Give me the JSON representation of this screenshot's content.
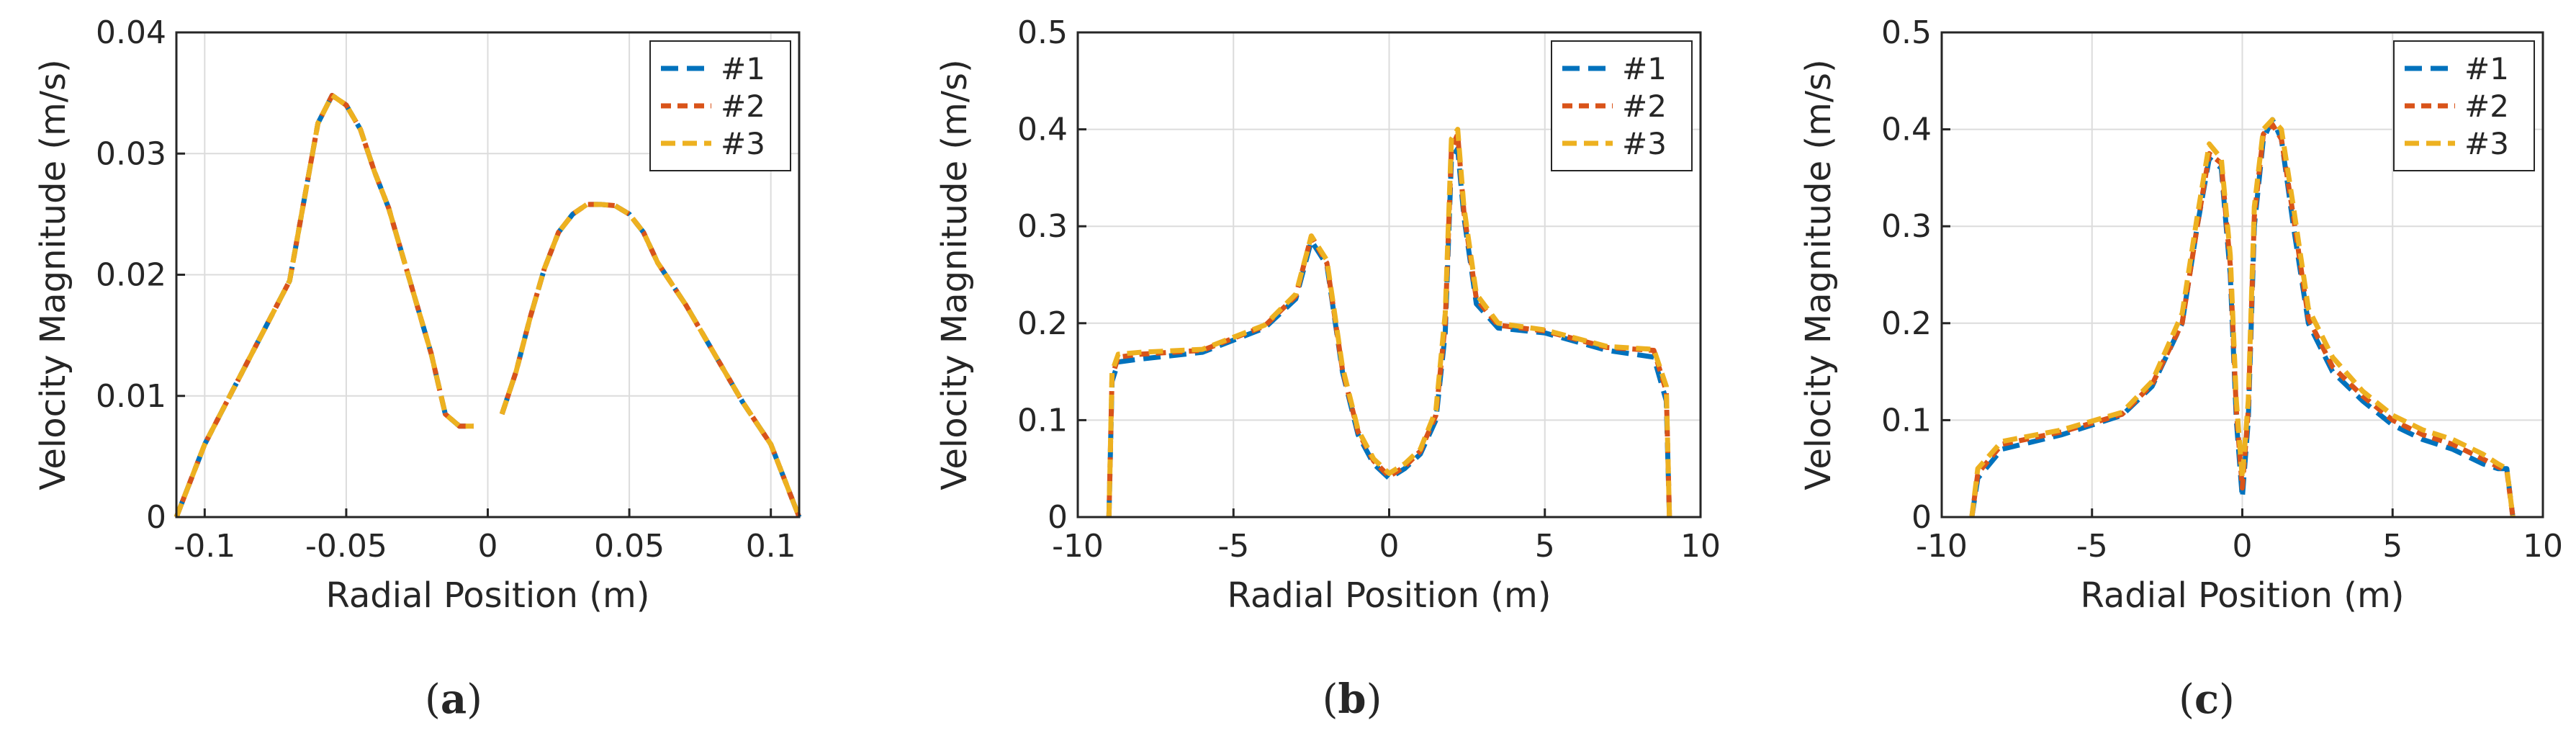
{
  "colors": {
    "series1": "#0072BD",
    "series2": "#D95319",
    "series3": "#EDB120",
    "grid": "#dcdcdc",
    "axis": "#262626"
  },
  "chart_data": [
    {
      "type": "line",
      "panel_label": "a",
      "xlabel": "Radial Position (m)",
      "ylabel": "Velocity Magnitude (m/s)",
      "xlim": [
        -0.11,
        0.11
      ],
      "ylim": [
        0,
        0.04
      ],
      "xticks": [
        -0.1,
        -0.05,
        0,
        0.05,
        0.1
      ],
      "xtick_labels": [
        "-0.1",
        "-0.05",
        "0",
        "0.05",
        "0.1"
      ],
      "yticks": [
        0,
        0.01,
        0.02,
        0.03,
        0.04
      ],
      "ytick_labels": [
        "0",
        "0.01",
        "0.02",
        "0.03",
        "0.04"
      ],
      "grid": true,
      "legend_position": "top-right",
      "series": [
        {
          "name": "#1",
          "x": [
            -0.11,
            -0.1,
            -0.09,
            -0.08,
            -0.07,
            -0.065,
            -0.06,
            -0.055,
            -0.05,
            -0.045,
            -0.04,
            -0.035,
            -0.03,
            -0.025,
            -0.02,
            -0.015,
            -0.01,
            -0.005,
            null,
            0.005,
            0.01,
            0.015,
            0.02,
            0.025,
            0.03,
            0.035,
            0.04,
            0.045,
            0.05,
            0.055,
            0.06,
            0.07,
            0.08,
            0.09,
            0.1,
            0.11
          ],
          "y": [
            0,
            0.006,
            0.0105,
            0.015,
            0.0195,
            0.026,
            0.0325,
            0.0348,
            0.034,
            0.032,
            0.0285,
            0.0255,
            0.0215,
            0.0175,
            0.0135,
            0.0085,
            0.0075,
            0.0075,
            null,
            0.0085,
            0.012,
            0.0165,
            0.0205,
            0.0235,
            0.025,
            0.0258,
            0.0258,
            0.0257,
            0.025,
            0.0235,
            0.021,
            0.0175,
            0.0135,
            0.0095,
            0.006,
            0
          ]
        },
        {
          "name": "#2",
          "x": [
            -0.11,
            -0.1,
            -0.09,
            -0.08,
            -0.07,
            -0.065,
            -0.06,
            -0.055,
            -0.05,
            -0.045,
            -0.04,
            -0.035,
            -0.03,
            -0.025,
            -0.02,
            -0.015,
            -0.01,
            -0.005,
            null,
            0.005,
            0.01,
            0.015,
            0.02,
            0.025,
            0.03,
            0.035,
            0.04,
            0.045,
            0.05,
            0.055,
            0.06,
            0.07,
            0.08,
            0.09,
            0.1,
            0.11
          ],
          "y": [
            0,
            0.006,
            0.0105,
            0.015,
            0.0195,
            0.026,
            0.0325,
            0.0348,
            0.034,
            0.032,
            0.0285,
            0.0255,
            0.0215,
            0.0175,
            0.0135,
            0.0085,
            0.0075,
            0.0075,
            null,
            0.0085,
            0.012,
            0.0165,
            0.0205,
            0.0235,
            0.025,
            0.0258,
            0.0258,
            0.0257,
            0.025,
            0.0235,
            0.021,
            0.0175,
            0.0135,
            0.0095,
            0.006,
            0
          ]
        },
        {
          "name": "#3",
          "x": [
            -0.11,
            -0.1,
            -0.09,
            -0.08,
            -0.07,
            -0.065,
            -0.06,
            -0.055,
            -0.05,
            -0.045,
            -0.04,
            -0.035,
            -0.03,
            -0.025,
            -0.02,
            -0.015,
            -0.01,
            -0.005,
            null,
            0.005,
            0.01,
            0.015,
            0.02,
            0.025,
            0.03,
            0.035,
            0.04,
            0.045,
            0.05,
            0.055,
            0.06,
            0.07,
            0.08,
            0.09,
            0.1,
            0.11
          ],
          "y": [
            0,
            0.006,
            0.0105,
            0.015,
            0.0195,
            0.026,
            0.0325,
            0.0348,
            0.034,
            0.032,
            0.0285,
            0.0255,
            0.0215,
            0.0175,
            0.0135,
            0.0085,
            0.0075,
            0.0075,
            null,
            0.0085,
            0.012,
            0.0165,
            0.0205,
            0.0235,
            0.025,
            0.0258,
            0.0258,
            0.0257,
            0.025,
            0.0235,
            0.021,
            0.0175,
            0.0135,
            0.0095,
            0.006,
            0
          ]
        }
      ]
    },
    {
      "type": "line",
      "panel_label": "b",
      "xlabel": "Radial Position (m)",
      "ylabel": "Velocity Magnitude (m/s)",
      "xlim": [
        -10,
        10
      ],
      "ylim": [
        0,
        0.5
      ],
      "xticks": [
        -10,
        -5,
        0,
        5,
        10
      ],
      "xtick_labels": [
        "-10",
        "-5",
        "0",
        "5",
        "10"
      ],
      "yticks": [
        0,
        0.1,
        0.2,
        0.3,
        0.4,
        0.5
      ],
      "ytick_labels": [
        "0",
        "0.1",
        "0.2",
        "0.3",
        "0.4",
        "0.5"
      ],
      "grid": true,
      "legend_position": "top-right",
      "series": [
        {
          "name": "#1",
          "x": [
            -9,
            -8.9,
            -8.7,
            -8,
            -6,
            -4,
            -3,
            -2.5,
            -2,
            -1.5,
            -1,
            -0.5,
            0,
            0.5,
            1,
            1.5,
            1.8,
            2,
            2.2,
            2.4,
            2.8,
            3.5,
            5,
            7,
            8.5,
            8.9,
            9
          ],
          "y": [
            0,
            0.14,
            0.16,
            0.163,
            0.17,
            0.195,
            0.225,
            0.285,
            0.26,
            0.15,
            0.085,
            0.055,
            0.04,
            0.05,
            0.065,
            0.1,
            0.19,
            0.37,
            0.38,
            0.31,
            0.22,
            0.195,
            0.19,
            0.172,
            0.165,
            0.12,
            0
          ]
        },
        {
          "name": "#2",
          "x": [
            -9,
            -8.9,
            -8.7,
            -8,
            -6,
            -4,
            -3,
            -2.5,
            -2,
            -1.5,
            -1,
            -0.5,
            0,
            0.5,
            1,
            1.5,
            1.8,
            2,
            2.2,
            2.4,
            2.8,
            3.5,
            5,
            7,
            8.5,
            8.9,
            9
          ],
          "y": [
            0,
            0.145,
            0.165,
            0.168,
            0.172,
            0.197,
            0.228,
            0.29,
            0.262,
            0.152,
            0.088,
            0.058,
            0.042,
            0.052,
            0.068,
            0.105,
            0.2,
            0.38,
            0.395,
            0.315,
            0.225,
            0.198,
            0.192,
            0.175,
            0.172,
            0.13,
            0
          ]
        },
        {
          "name": "#3",
          "x": [
            -9,
            -8.9,
            -8.7,
            -8,
            -6,
            -4,
            -3,
            -2.5,
            -2,
            -1.5,
            -1,
            -0.5,
            0,
            0.5,
            1,
            1.5,
            1.8,
            2,
            2.2,
            2.4,
            2.8,
            3.5,
            5,
            7,
            8.5,
            8.9,
            9
          ],
          "y": [
            0,
            0.15,
            0.168,
            0.17,
            0.173,
            0.198,
            0.23,
            0.29,
            0.265,
            0.155,
            0.09,
            0.06,
            0.045,
            0.055,
            0.07,
            0.11,
            0.21,
            0.39,
            0.4,
            0.32,
            0.23,
            0.2,
            0.193,
            0.176,
            0.173,
            0.135,
            0
          ]
        }
      ]
    },
    {
      "type": "line",
      "panel_label": "c",
      "xlabel": "Radial Position (m)",
      "ylabel": "Velocity Magnitude (m/s)",
      "xlim": [
        -10,
        10
      ],
      "ylim": [
        0,
        0.5
      ],
      "xticks": [
        -10,
        -5,
        0,
        5,
        10
      ],
      "xtick_labels": [
        "-10",
        "-5",
        "0",
        "5",
        "10"
      ],
      "yticks": [
        0,
        0.1,
        0.2,
        0.3,
        0.4,
        0.5
      ],
      "ytick_labels": [
        "0",
        "0.1",
        "0.2",
        "0.3",
        "0.4",
        "0.5"
      ],
      "grid": true,
      "legend_position": "top-right",
      "series": [
        {
          "name": "#1",
          "x": [
            -9,
            -8.8,
            -8,
            -6,
            -4,
            -3,
            -2,
            -1.5,
            -1.1,
            -0.7,
            -0.4,
            -0.2,
            0,
            0.2,
            0.4,
            0.7,
            1,
            1.3,
            1.7,
            2.2,
            3,
            4,
            5,
            6,
            7,
            8,
            8.5,
            8.8,
            9
          ],
          "y": [
            0,
            0.04,
            0.07,
            0.085,
            0.105,
            0.135,
            0.2,
            0.3,
            0.37,
            0.36,
            0.25,
            0.1,
            0.02,
            0.1,
            0.3,
            0.39,
            0.41,
            0.39,
            0.3,
            0.2,
            0.15,
            0.12,
            0.095,
            0.08,
            0.07,
            0.055,
            0.05,
            0.05,
            0
          ]
        },
        {
          "name": "#2",
          "x": [
            -9,
            -8.8,
            -8,
            -6,
            -4,
            -3,
            -2,
            -1.5,
            -1.1,
            -0.7,
            -0.4,
            -0.2,
            0,
            0.2,
            0.4,
            0.7,
            1,
            1.3,
            1.7,
            2.2,
            3,
            4,
            5,
            6,
            7,
            8,
            8.5,
            8.8,
            9
          ],
          "y": [
            0,
            0.045,
            0.075,
            0.088,
            0.106,
            0.137,
            0.2,
            0.3,
            0.375,
            0.365,
            0.26,
            0.11,
            0.03,
            0.11,
            0.31,
            0.395,
            0.405,
            0.39,
            0.31,
            0.205,
            0.155,
            0.125,
            0.1,
            0.085,
            0.075,
            0.06,
            0.052,
            0.048,
            0
          ]
        },
        {
          "name": "#3",
          "x": [
            -9,
            -8.8,
            -8,
            -6,
            -4,
            -3,
            -2,
            -1.5,
            -1.1,
            -0.7,
            -0.4,
            -0.2,
            0,
            0.2,
            0.4,
            0.7,
            1,
            1.3,
            1.7,
            2.2,
            3,
            4,
            5,
            6,
            7,
            8,
            8.5,
            8.8,
            9
          ],
          "y": [
            0,
            0.05,
            0.078,
            0.09,
            0.108,
            0.14,
            0.21,
            0.31,
            0.385,
            0.37,
            0.27,
            0.12,
            0.04,
            0.12,
            0.32,
            0.4,
            0.41,
            0.4,
            0.32,
            0.215,
            0.165,
            0.13,
            0.105,
            0.09,
            0.08,
            0.065,
            0.055,
            0.05,
            0
          ]
        }
      ]
    }
  ]
}
